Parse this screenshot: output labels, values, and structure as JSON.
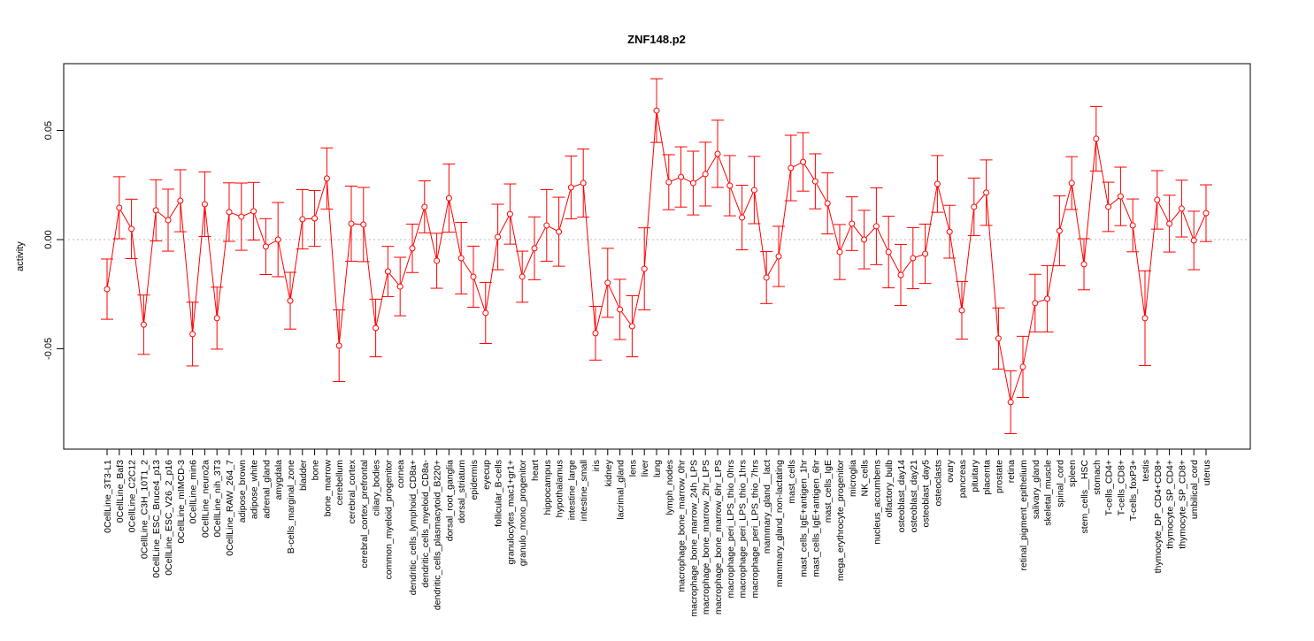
{
  "chart_data": {
    "type": "line",
    "title": "ZNF148.p2",
    "xlabel": "",
    "ylabel": "activity",
    "ylim": [
      -0.096,
      0.0806
    ],
    "yticks": [
      -0.05,
      0.0,
      0.05
    ],
    "ytick_labels": [
      "-0.05",
      "0.00",
      "0.05"
    ],
    "reference_line": 0,
    "grid": false,
    "color": "#ff0000",
    "categories": [
      "0CellLine_3T3-L1",
      "0CellLine_Baf3",
      "0CellLine_C2C12",
      "0CellLine_C3H_10T1_2",
      "0CellLine_ESC_Bruce4_p13",
      "0CellLine_ESC_V26_2_p16",
      "0CellLine_mIMCD-3",
      "0CellLine_min6",
      "0CellLine_neuro2a",
      "0CellLine_nih_3T3",
      "0CellLine_RAW_264_7",
      "adipose_brown",
      "adipose_white",
      "adrenal_gland",
      "amygdala",
      "B-cells_marginal_zone",
      "bladder",
      "bone",
      "bone_marrow",
      "cerebellum",
      "cerebral_cortex",
      "cerebral_cortex_prefrontal",
      "ciliary_bodies",
      "common_myeloid_progenitor",
      "cornea",
      "dendritic_cells_lymphoid_CD8a+",
      "dendritic_cells_myeloid_CD8a-",
      "dendritic_cells_plasmacytoid_B220+",
      "dorsal_root_ganglia",
      "dorsal_striatum",
      "epidermis",
      "eyecup",
      "follicular_B-cells",
      "granulocytes_mac1+gr1+",
      "granulo_mono_progenitor",
      "heart",
      "hippocampus",
      "hypothalamus",
      "intestine_large",
      "intestine_small",
      "iris",
      "kidney",
      "lacrimal_gland",
      "lens",
      "liver",
      "lung",
      "lymph_nodes",
      "macrophage_bone_marrow_0hr",
      "macrophage_bone_marrow_24h_LPS",
      "macrophage_bone_marrow_2hr_LPS",
      "macrophage_bone_marrow_6hr_LPS",
      "macrophage_peri_LPS_thio_0hrs",
      "macrophage_peri_LPS_thio_1hrs",
      "macrophage_peri_LPS_thio_7hrs",
      "mammary_gland__lact",
      "mammary_gland_non-lactating",
      "mast_cells",
      "mast_cells_IgE+antigen_1hr",
      "mast_cells_IgE+antigen_6hr",
      "mast_cells_IgE",
      "mega_erythrocyte_progenitor",
      "microglia",
      "NK_cells",
      "nucleus_accumbens",
      "olfactory_bulb",
      "osteoblast_day14",
      "osteoblast_day21",
      "osteoblast_day5",
      "osteoclasts",
      "ovary",
      "pancreas",
      "pituitary",
      "placenta",
      "prostate",
      "retina",
      "retinal_pigment_epithelium",
      "salivary_gland",
      "skeletal_muscle",
      "spinal_cord",
      "spleen",
      "stem_cells__HSC",
      "stomach",
      "T-cells_CD4+",
      "T-cells_CD8+",
      "T-cells_foxP3+",
      "testis",
      "thymocyte_DP_CD4+CD8+",
      "thymocyte_SP_CD4+",
      "thymocyte_SP_CD8+",
      "umbilical_cord",
      "uterus"
    ],
    "values": [
      -0.0227,
      0.0146,
      0.0049,
      -0.039,
      0.0134,
      0.0089,
      0.0178,
      -0.0433,
      0.0162,
      -0.036,
      0.0126,
      0.0105,
      0.013,
      -0.0032,
      0.0,
      -0.028,
      0.0093,
      0.0097,
      0.028,
      -0.0486,
      0.0073,
      0.0069,
      -0.0405,
      -0.0146,
      -0.0215,
      -0.004,
      0.015,
      -0.0097,
      0.019,
      -0.0085,
      -0.017,
      -0.0336,
      0.0012,
      0.0117,
      -0.017,
      -0.004,
      0.0065,
      0.0036,
      0.0239,
      0.0259,
      -0.0429,
      -0.0198,
      -0.032,
      -0.0397,
      -0.0134,
      0.0591,
      0.0263,
      0.0287,
      0.0259,
      0.03,
      0.0393,
      0.0247,
      0.0101,
      0.0227,
      -0.0174,
      -0.0077,
      0.0328,
      0.0356,
      0.0267,
      0.0166,
      -0.0057,
      0.0073,
      0.0,
      0.0061,
      -0.0057,
      -0.0162,
      -0.0085,
      -0.0065,
      0.0255,
      0.0036,
      -0.0324,
      0.015,
      0.0215,
      -0.0453,
      -0.0745,
      -0.0583,
      -0.0291,
      -0.0271,
      0.004,
      0.0259,
      -0.0113,
      0.0462,
      0.015,
      0.0198,
      0.0065,
      -0.036,
      0.0182,
      0.0073,
      0.0142,
      -0.0004,
      0.0121
    ],
    "errors": [
      0.0138,
      0.0142,
      0.0136,
      0.0136,
      0.014,
      0.0142,
      0.0142,
      0.0146,
      0.0148,
      0.0142,
      0.0134,
      0.0154,
      0.0132,
      0.0128,
      0.017,
      0.013,
      0.0136,
      0.0128,
      0.014,
      0.0164,
      0.0172,
      0.017,
      0.0132,
      0.0115,
      0.0134,
      0.0111,
      0.0119,
      0.0126,
      0.0156,
      0.0164,
      0.014,
      0.014,
      0.015,
      0.0138,
      0.0117,
      0.0144,
      0.0164,
      0.0158,
      0.0144,
      0.0156,
      0.0123,
      0.0158,
      0.0138,
      0.014,
      0.0188,
      0.0146,
      0.0126,
      0.0138,
      0.0146,
      0.0146,
      0.0154,
      0.0138,
      0.0148,
      0.0154,
      0.0119,
      0.0138,
      0.015,
      0.0134,
      0.0126,
      0.014,
      0.0126,
      0.0123,
      0.0134,
      0.0176,
      0.0164,
      0.014,
      0.014,
      0.0136,
      0.013,
      0.0121,
      0.0132,
      0.0132,
      0.015,
      0.014,
      0.0144,
      0.014,
      0.0132,
      0.0152,
      0.016,
      0.0121,
      0.0117,
      0.0148,
      0.0113,
      0.0134,
      0.0121,
      0.0217,
      0.0134,
      0.013,
      0.013,
      0.0134,
      0.013
    ]
  }
}
